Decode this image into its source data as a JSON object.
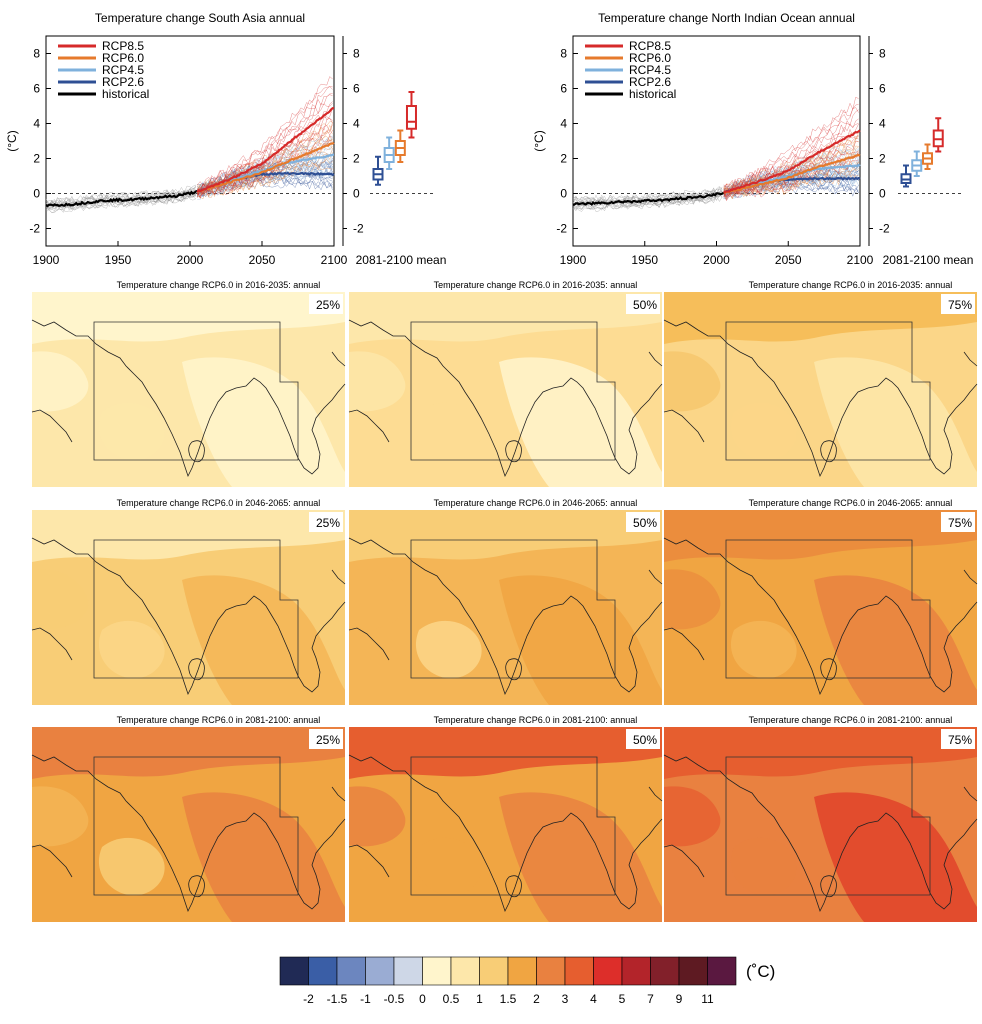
{
  "legend_series": [
    {
      "name": "RCP8.5",
      "color": "#d62a2a"
    },
    {
      "name": "RCP6.0",
      "color": "#e67a2c"
    },
    {
      "name": "RCP4.5",
      "color": "#7fb1dc"
    },
    {
      "name": "RCP2.6",
      "color": "#2e4f94"
    },
    {
      "name": "historical",
      "color": "#000000"
    }
  ],
  "chart_data": [
    {
      "type": "line",
      "title": "Temperature change South Asia annual",
      "ylabel": "(°C)",
      "xlim": [
        1900,
        2100
      ],
      "ylim": [
        -3,
        9
      ],
      "xticks": [
        "1900",
        "1950",
        "2000",
        "2050",
        "2100"
      ],
      "yticks": [
        "-2",
        "0",
        "2",
        "4",
        "6",
        "8"
      ],
      "series": [
        {
          "name": "historical",
          "color": "#000000",
          "x": [
            1900,
            1920,
            1940,
            1960,
            1980,
            1990,
            2005
          ],
          "y": [
            -0.7,
            -0.6,
            -0.4,
            -0.35,
            -0.2,
            -0.15,
            0.1
          ]
        },
        {
          "name": "RCP2.6",
          "color": "#2e4f94",
          "x": [
            2005,
            2030,
            2050,
            2070,
            2100
          ],
          "y": [
            0.1,
            0.8,
            1.1,
            1.15,
            1.1
          ]
        },
        {
          "name": "RCP4.5",
          "color": "#7fb1dc",
          "x": [
            2005,
            2030,
            2050,
            2070,
            2100
          ],
          "y": [
            0.1,
            0.8,
            1.3,
            1.8,
            2.2
          ]
        },
        {
          "name": "RCP6.0",
          "color": "#e67a2c",
          "x": [
            2005,
            2030,
            2050,
            2070,
            2100
          ],
          "y": [
            0.1,
            0.7,
            1.2,
            1.9,
            2.9
          ]
        },
        {
          "name": "RCP8.5",
          "color": "#d62a2a",
          "x": [
            2005,
            2030,
            2050,
            2070,
            2100
          ],
          "y": [
            0.1,
            0.9,
            1.7,
            3.0,
            4.9
          ]
        }
      ],
      "box_panel": {
        "xlabel": "2081-2100 mean",
        "boxes": [
          {
            "name": "RCP2.6",
            "color": "#2e4f94",
            "min": 0.5,
            "q1": 0.8,
            "median": 1.1,
            "q3": 1.4,
            "max": 2.1
          },
          {
            "name": "RCP4.5",
            "color": "#7fb1dc",
            "min": 1.4,
            "q1": 1.8,
            "median": 2.2,
            "q3": 2.6,
            "max": 3.2
          },
          {
            "name": "RCP6.0",
            "color": "#e67a2c",
            "min": 1.8,
            "q1": 2.2,
            "median": 2.6,
            "q3": 3.0,
            "max": 3.6
          },
          {
            "name": "RCP8.5",
            "color": "#d62a2a",
            "min": 3.2,
            "q1": 3.7,
            "median": 4.1,
            "q3": 5.0,
            "max": 5.8
          }
        ]
      }
    },
    {
      "type": "line",
      "title": "Temperature change North Indian Ocean annual",
      "ylabel": "(°C)",
      "xlim": [
        1900,
        2100
      ],
      "ylim": [
        -3,
        9
      ],
      "xticks": [
        "1900",
        "1950",
        "2000",
        "2050",
        "2100"
      ],
      "yticks": [
        "-2",
        "0",
        "2",
        "4",
        "6",
        "8"
      ],
      "series": [
        {
          "name": "historical",
          "color": "#000000",
          "x": [
            1900,
            1920,
            1940,
            1960,
            1980,
            1990,
            2005
          ],
          "y": [
            -0.6,
            -0.55,
            -0.45,
            -0.4,
            -0.25,
            -0.2,
            0.05
          ]
        },
        {
          "name": "RCP2.6",
          "color": "#2e4f94",
          "x": [
            2005,
            2030,
            2050,
            2070,
            2100
          ],
          "y": [
            0.05,
            0.6,
            0.8,
            0.85,
            0.85
          ]
        },
        {
          "name": "RCP4.5",
          "color": "#7fb1dc",
          "x": [
            2005,
            2030,
            2050,
            2070,
            2100
          ],
          "y": [
            0.05,
            0.6,
            1.0,
            1.4,
            1.6
          ]
        },
        {
          "name": "RCP6.0",
          "color": "#e67a2c",
          "x": [
            2005,
            2030,
            2050,
            2070,
            2100
          ],
          "y": [
            0.05,
            0.5,
            0.9,
            1.5,
            2.2
          ]
        },
        {
          "name": "RCP8.5",
          "color": "#d62a2a",
          "x": [
            2005,
            2030,
            2050,
            2070,
            2100
          ],
          "y": [
            0.05,
            0.7,
            1.3,
            2.3,
            3.6
          ]
        }
      ],
      "box_panel": {
        "xlabel": "2081-2100 mean",
        "boxes": [
          {
            "name": "RCP2.6",
            "color": "#2e4f94",
            "min": 0.4,
            "q1": 0.6,
            "median": 0.8,
            "q3": 1.1,
            "max": 1.6
          },
          {
            "name": "RCP4.5",
            "color": "#7fb1dc",
            "min": 1.0,
            "q1": 1.3,
            "median": 1.6,
            "q3": 1.9,
            "max": 2.4
          },
          {
            "name": "RCP6.0",
            "color": "#e67a2c",
            "min": 1.4,
            "q1": 1.7,
            "median": 2.0,
            "q3": 2.3,
            "max": 2.8
          },
          {
            "name": "RCP8.5",
            "color": "#d62a2a",
            "min": 2.4,
            "q1": 2.7,
            "median": 3.1,
            "q3": 3.6,
            "max": 4.3
          }
        ]
      }
    },
    {
      "type": "heatmap",
      "maps": [
        {
          "title": "Temperature change RCP6.0 in 2016-2035: annual",
          "percentile": "25%",
          "fill": "#fde7aa",
          "patches": [
            "#fff5cc",
            "#fff5cc",
            "#fde7aa",
            "#fff5cc"
          ]
        },
        {
          "title": "Temperature change RCP6.0 in 2016-2035: annual",
          "percentile": "50%",
          "fill": "#fddc93",
          "patches": [
            "#fde7aa",
            "#fff5cc",
            "#fddc93",
            "#fde7aa"
          ]
        },
        {
          "title": "Temperature change RCP6.0 in 2016-2035: annual",
          "percentile": "75%",
          "fill": "#fbd688",
          "patches": [
            "#f6be5a",
            "#fde7aa",
            "#fbd688",
            "#f6c56c"
          ]
        },
        {
          "title": "Temperature change RCP6.0 in 2046-2065: annual",
          "percentile": "25%",
          "fill": "#f8cd76",
          "patches": [
            "#fde7aa",
            "#f4b556",
            "#fbd688",
            "#f8cd76"
          ]
        },
        {
          "title": "Temperature change RCP6.0 in 2046-2065: annual",
          "percentile": "50%",
          "fill": "#f4b556",
          "patches": [
            "#f8cd76",
            "#f0a542",
            "#fbd688",
            "#f4b556"
          ]
        },
        {
          "title": "Temperature change RCP6.0 in 2046-2065: annual",
          "percentile": "75%",
          "fill": "#f0a542",
          "patches": [
            "#eb8d3d",
            "#e98140",
            "#f4b556",
            "#eb8d3d"
          ]
        },
        {
          "title": "Temperature change RCP6.0 in 2081-2100: annual",
          "percentile": "25%",
          "fill": "#f0a542",
          "patches": [
            "#e98140",
            "#e98140",
            "#f8cd76",
            "#f4b556"
          ]
        },
        {
          "title": "Temperature change RCP6.0 in 2081-2100: annual",
          "percentile": "50%",
          "fill": "#f0a542",
          "patches": [
            "#e65e2f",
            "#e98140",
            "#f0a542",
            "#e98140"
          ]
        },
        {
          "title": "Temperature change RCP6.0 in 2081-2100: annual",
          "percentile": "75%",
          "fill": "#e98140",
          "patches": [
            "#e65e2f",
            "#e0432a",
            "#e98140",
            "#e65e2f"
          ]
        }
      ]
    }
  ],
  "colorbar": {
    "unit": "(˚C)",
    "colors": [
      "#202a55",
      "#3a5ea6",
      "#6c86bf",
      "#9aacd3",
      "#ced7e7",
      "#fff5cc",
      "#fde7aa",
      "#f8cd76",
      "#f0a542",
      "#e98140",
      "#e65e2f",
      "#dd2e2a",
      "#b3242a",
      "#82202a",
      "#5e1a22",
      "#5a1840"
    ],
    "labels": [
      "-2",
      "-1.5",
      "-1",
      "-0.5",
      "0",
      "0.5",
      "1",
      "1.5",
      "2",
      "3",
      "4",
      "5",
      "7",
      "9",
      "11"
    ]
  }
}
